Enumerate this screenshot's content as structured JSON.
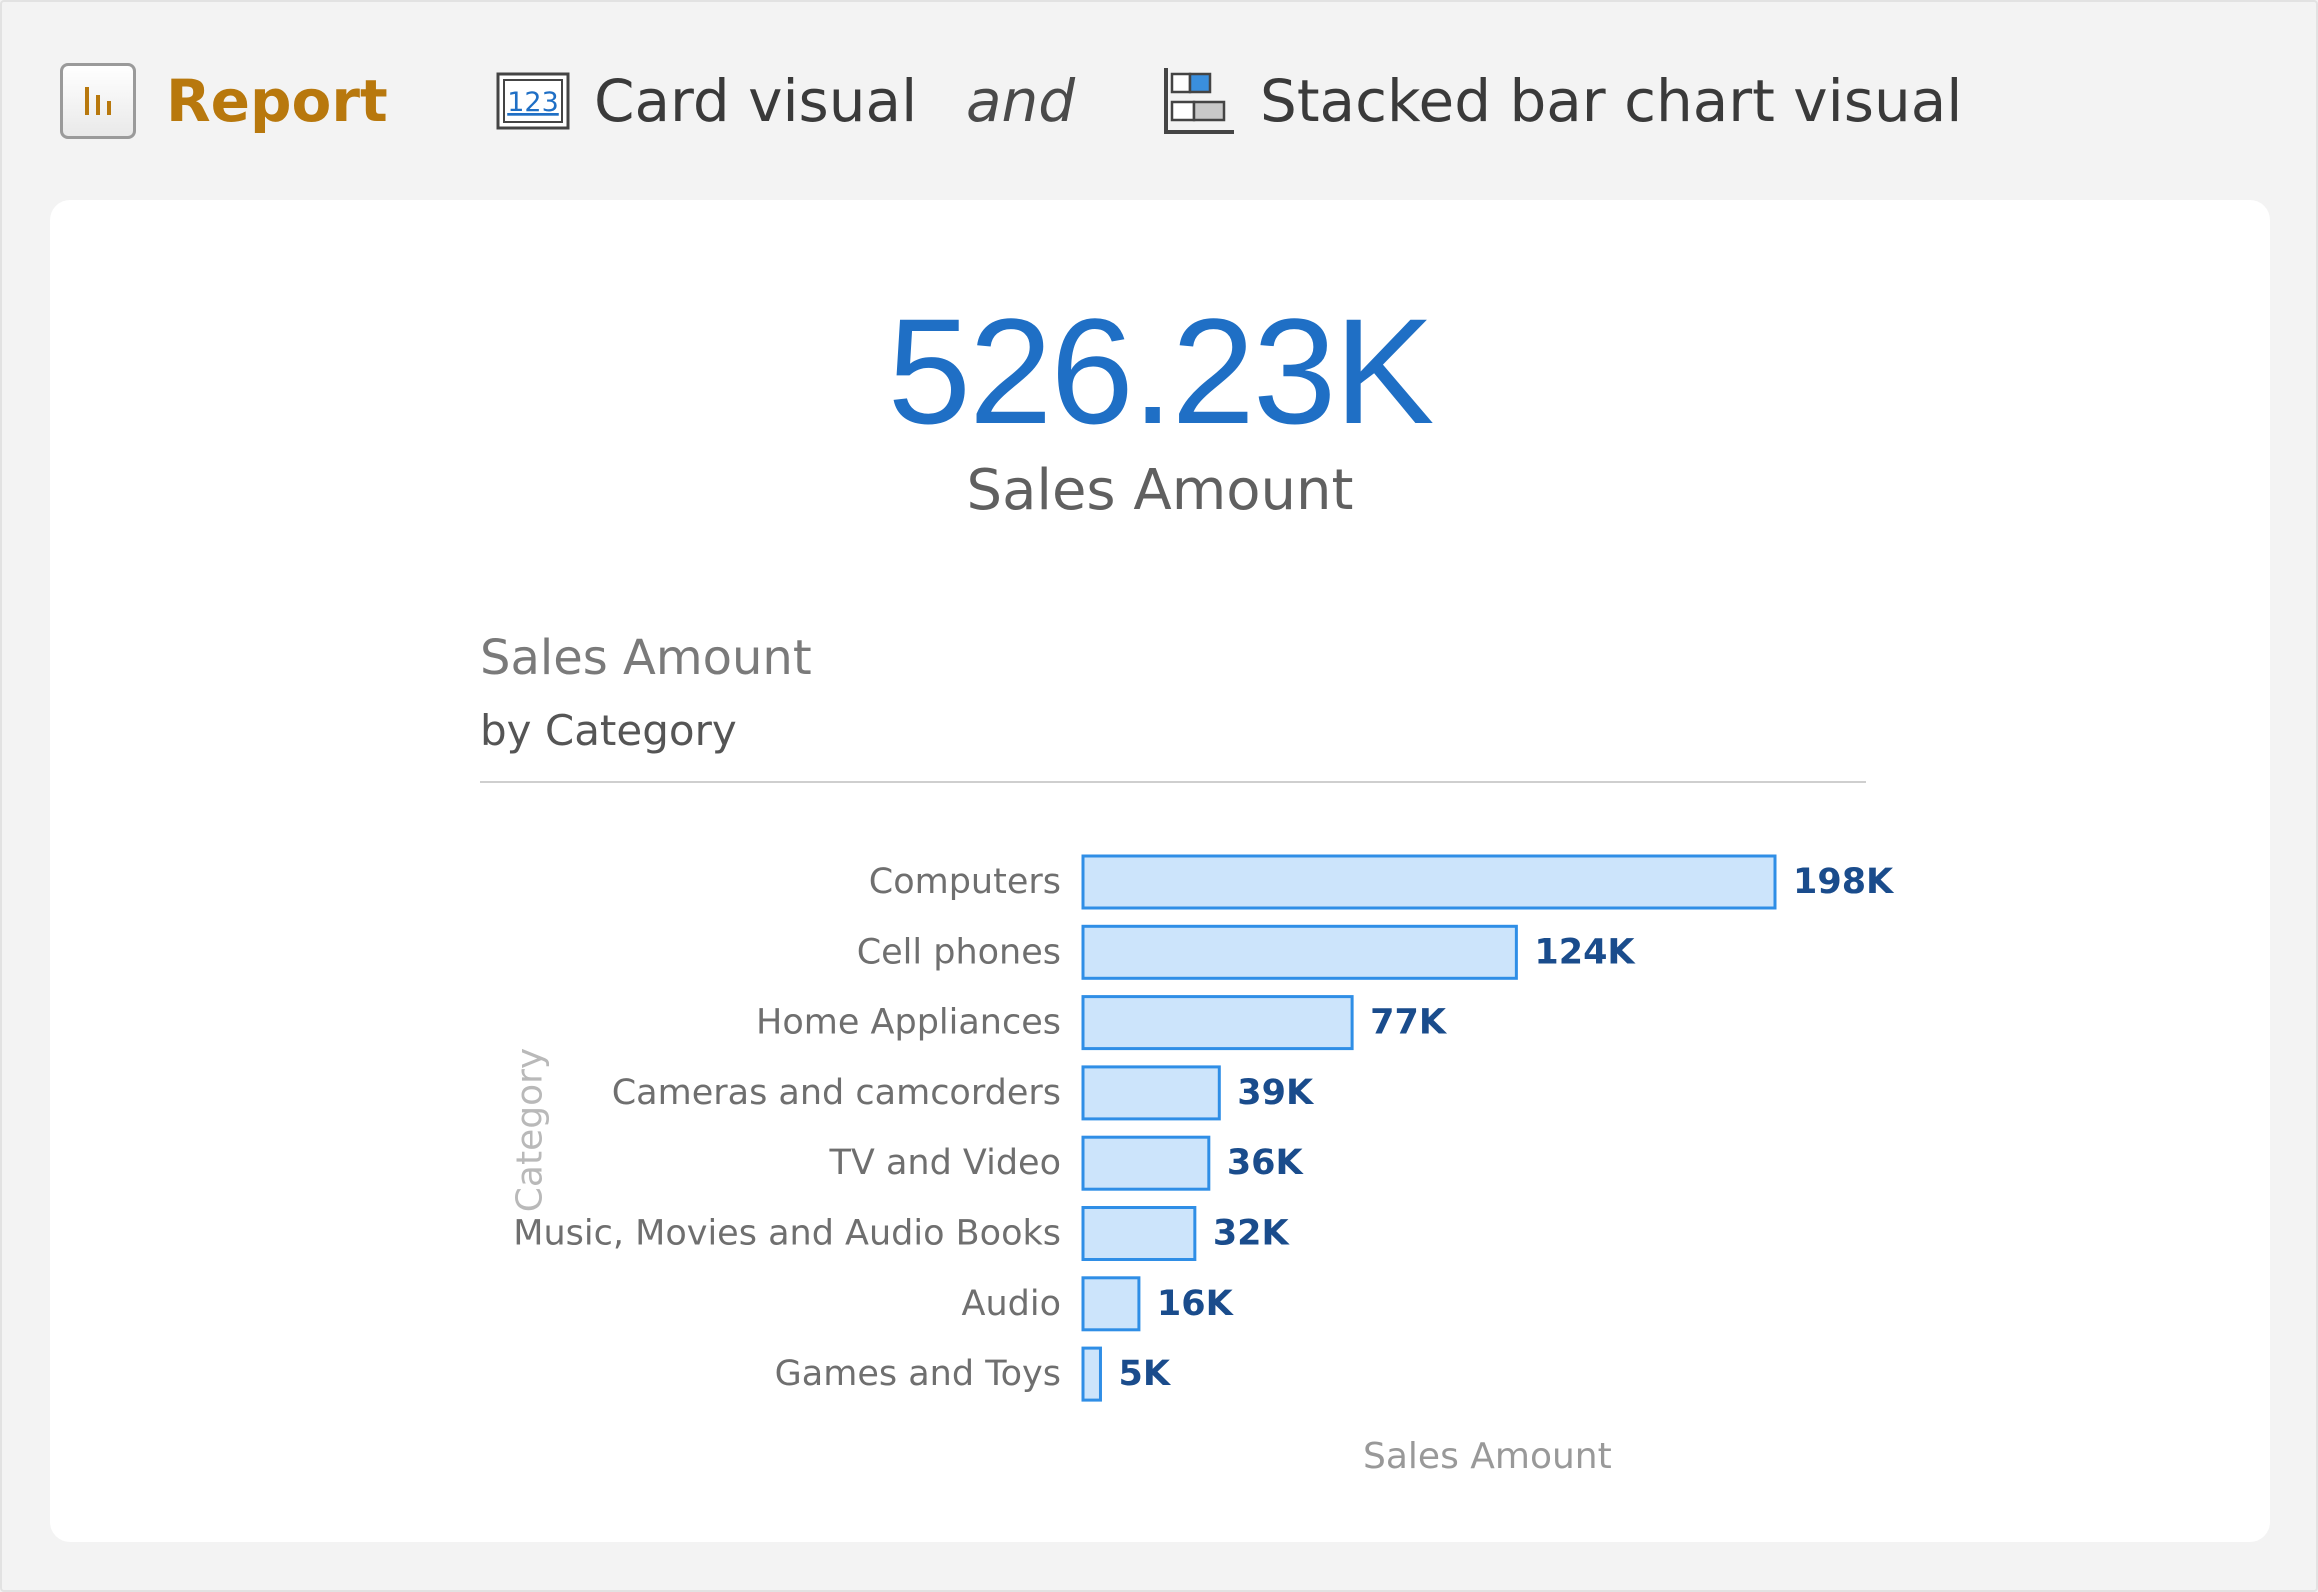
{
  "header": {
    "report_label": "Report",
    "card_label": "Card visual",
    "card_icon_text": "123",
    "connector": "and",
    "bar_label": "Stacked bar chart visual"
  },
  "card": {
    "value": "526.23K",
    "label": "Sales Amount"
  },
  "colors": {
    "accent": "#1f6fc5",
    "report_accent": "#b8780d",
    "bar_fill": "#cce4fb",
    "bar_stroke": "#2f8ee6",
    "data_label": "#1a4c8c"
  },
  "chart_data": {
    "type": "bar",
    "orientation": "horizontal",
    "title": "Sales Amount",
    "subtitle": "by Category",
    "xlabel": "Sales Amount",
    "ylabel": "Category",
    "categories": [
      "Computers",
      "Cell phones",
      "Home Appliances",
      "Cameras and camcorders",
      "TV and Video",
      "Music, Movies and Audio Books",
      "Audio",
      "Games and Toys"
    ],
    "values": [
      198,
      124,
      77,
      39,
      36,
      32,
      16,
      5
    ],
    "data_labels": [
      "198K",
      "124K",
      "77K",
      "39K",
      "36K",
      "32K",
      "16K",
      "5K"
    ],
    "value_unit": "K",
    "xlim": [
      0,
      198
    ],
    "grid": false,
    "legend": "none"
  }
}
